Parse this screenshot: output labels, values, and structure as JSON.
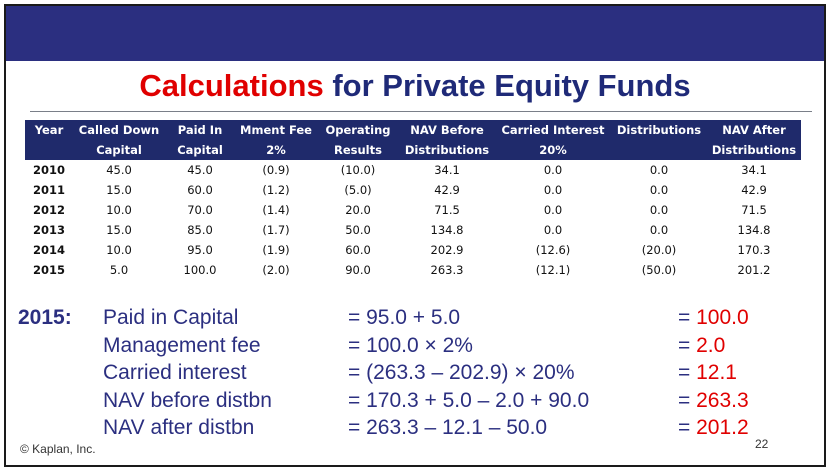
{
  "title": {
    "part1": "Calculations",
    "part2": " for Private Equity Funds"
  },
  "table": {
    "headers": [
      {
        "line1": "Year",
        "line2": ""
      },
      {
        "line1": "Called Down",
        "line2": "Capital"
      },
      {
        "line1": "Paid In",
        "line2": "Capital"
      },
      {
        "line1": "Mment Fee",
        "line2": "2%"
      },
      {
        "line1": "Operating",
        "line2": "Results"
      },
      {
        "line1": "NAV Before",
        "line2": "Distributions"
      },
      {
        "line1": "Carried Interest",
        "line2": "20%"
      },
      {
        "line1": "Distributions",
        "line2": ""
      },
      {
        "line1": "NAV After",
        "line2": "Distributions"
      }
    ],
    "rows": [
      [
        "2010",
        "45.0",
        "45.0",
        "(0.9)",
        "(10.0)",
        "34.1",
        "0.0",
        "0.0",
        "34.1"
      ],
      [
        "2011",
        "15.0",
        "60.0",
        "(1.2)",
        "(5.0)",
        "42.9",
        "0.0",
        "0.0",
        "42.9"
      ],
      [
        "2012",
        "10.0",
        "70.0",
        "(1.4)",
        "20.0",
        "71.5",
        "0.0",
        "0.0",
        "71.5"
      ],
      [
        "2013",
        "15.0",
        "85.0",
        "(1.7)",
        "50.0",
        "134.8",
        "0.0",
        "0.0",
        "134.8"
      ],
      [
        "2014",
        "10.0",
        "95.0",
        "(1.9)",
        "60.0",
        "202.9",
        "(12.6)",
        "(20.0)",
        "170.3"
      ],
      [
        "2015",
        "5.0",
        "100.0",
        "(2.0)",
        "90.0",
        "263.3",
        "(12.1)",
        "(50.0)",
        "201.2"
      ]
    ]
  },
  "calc": {
    "year": "2015:",
    "rows": [
      {
        "label": "Paid in Capital",
        "expr": "= 95.0 + 5.0",
        "eq": "= ",
        "value": "100.0"
      },
      {
        "label": "Management fee",
        "expr": "= 100.0 × 2%",
        "eq": "= ",
        "value": "2.0"
      },
      {
        "label": "Carried interest",
        "expr": "= (263.3 – 202.9) × 20%",
        "eq": "= ",
        "value": "12.1"
      },
      {
        "label": "NAV before distbn",
        "expr": "= 170.3 + 5.0 – 2.0 + 90.0",
        "eq": "= ",
        "value": "263.3"
      },
      {
        "label": "NAV after distbn",
        "expr": "= 263.3 – 12.1 – 50.0",
        "eq": "= ",
        "value": "201.2"
      }
    ]
  },
  "footer": {
    "copyright": "© Kaplan, Inc.",
    "page": "22"
  },
  "colors": {
    "header_bar": "#2b2f80",
    "table_header": "#1f2a6b",
    "accent_red": "#e00000"
  }
}
